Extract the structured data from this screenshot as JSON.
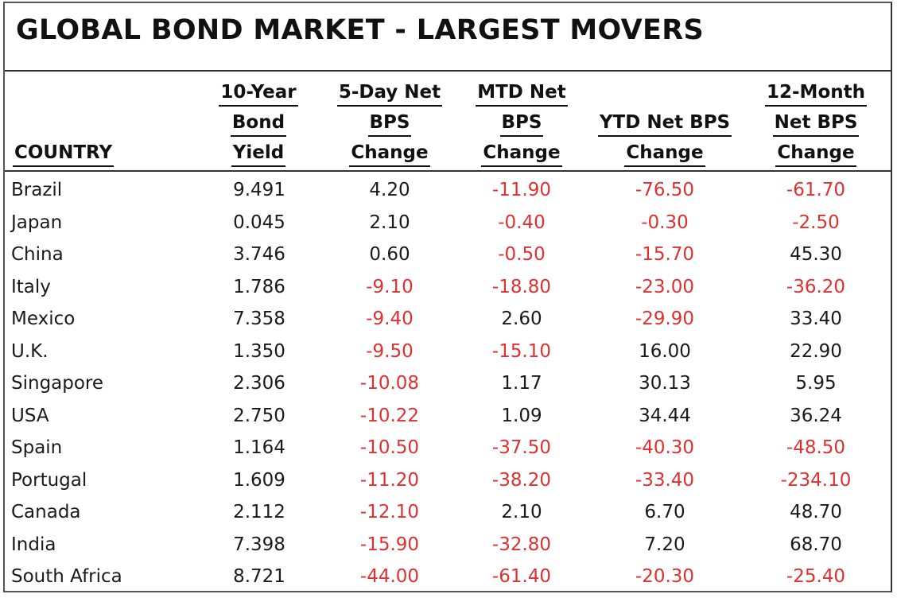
{
  "title": "GLOBAL BOND MARKET - LARGEST MOVERS",
  "headers": {
    "country": [
      "COUNTRY"
    ],
    "yield": [
      "10-Year",
      "Bond",
      "Yield"
    ],
    "five_day": [
      "5-Day Net",
      "BPS",
      "Change"
    ],
    "mtd": [
      "MTD Net",
      "BPS",
      "Change"
    ],
    "ytd": [
      "YTD Net BPS",
      "Change"
    ],
    "twelve_month": [
      "12-Month",
      "Net BPS",
      "Change"
    ]
  },
  "colors": {
    "negative": "#e03030",
    "positive": "#1a1a1a"
  },
  "rows": [
    {
      "country": "Brazil",
      "yield": "9.491",
      "five_day": "4.20",
      "mtd": "-11.90",
      "ytd": "-76.50",
      "twelve_month": "-61.70"
    },
    {
      "country": "Japan",
      "yield": "0.045",
      "five_day": "2.10",
      "mtd": "-0.40",
      "ytd": "-0.30",
      "twelve_month": "-2.50"
    },
    {
      "country": "China",
      "yield": "3.746",
      "five_day": "0.60",
      "mtd": "-0.50",
      "ytd": "-15.70",
      "twelve_month": "45.30"
    },
    {
      "country": "Italy",
      "yield": "1.786",
      "five_day": "-9.10",
      "mtd": "-18.80",
      "ytd": "-23.00",
      "twelve_month": "-36.20"
    },
    {
      "country": "Mexico",
      "yield": "7.358",
      "five_day": "-9.40",
      "mtd": "2.60",
      "ytd": "-29.90",
      "twelve_month": "33.40"
    },
    {
      "country": "U.K.",
      "yield": "1.350",
      "five_day": "-9.50",
      "mtd": "-15.10",
      "ytd": "16.00",
      "twelve_month": "22.90"
    },
    {
      "country": "Singapore",
      "yield": "2.306",
      "five_day": "-10.08",
      "mtd": "1.17",
      "ytd": "30.13",
      "twelve_month": "5.95"
    },
    {
      "country": "USA",
      "yield": "2.750",
      "five_day": "-10.22",
      "mtd": "1.09",
      "ytd": "34.44",
      "twelve_month": "36.24"
    },
    {
      "country": "Spain",
      "yield": "1.164",
      "five_day": "-10.50",
      "mtd": "-37.50",
      "ytd": "-40.30",
      "twelve_month": "-48.50"
    },
    {
      "country": "Portugal",
      "yield": "1.609",
      "five_day": "-11.20",
      "mtd": "-38.20",
      "ytd": "-33.40",
      "twelve_month": "-234.10"
    },
    {
      "country": "Canada",
      "yield": "2.112",
      "five_day": "-12.10",
      "mtd": "2.10",
      "ytd": "6.70",
      "twelve_month": "48.70"
    },
    {
      "country": "India",
      "yield": "7.398",
      "five_day": "-15.90",
      "mtd": "-32.80",
      "ytd": "7.20",
      "twelve_month": "68.70"
    },
    {
      "country": "South Africa",
      "yield": "8.721",
      "five_day": "-44.00",
      "mtd": "-61.40",
      "ytd": "-20.30",
      "twelve_month": "-25.40"
    }
  ]
}
